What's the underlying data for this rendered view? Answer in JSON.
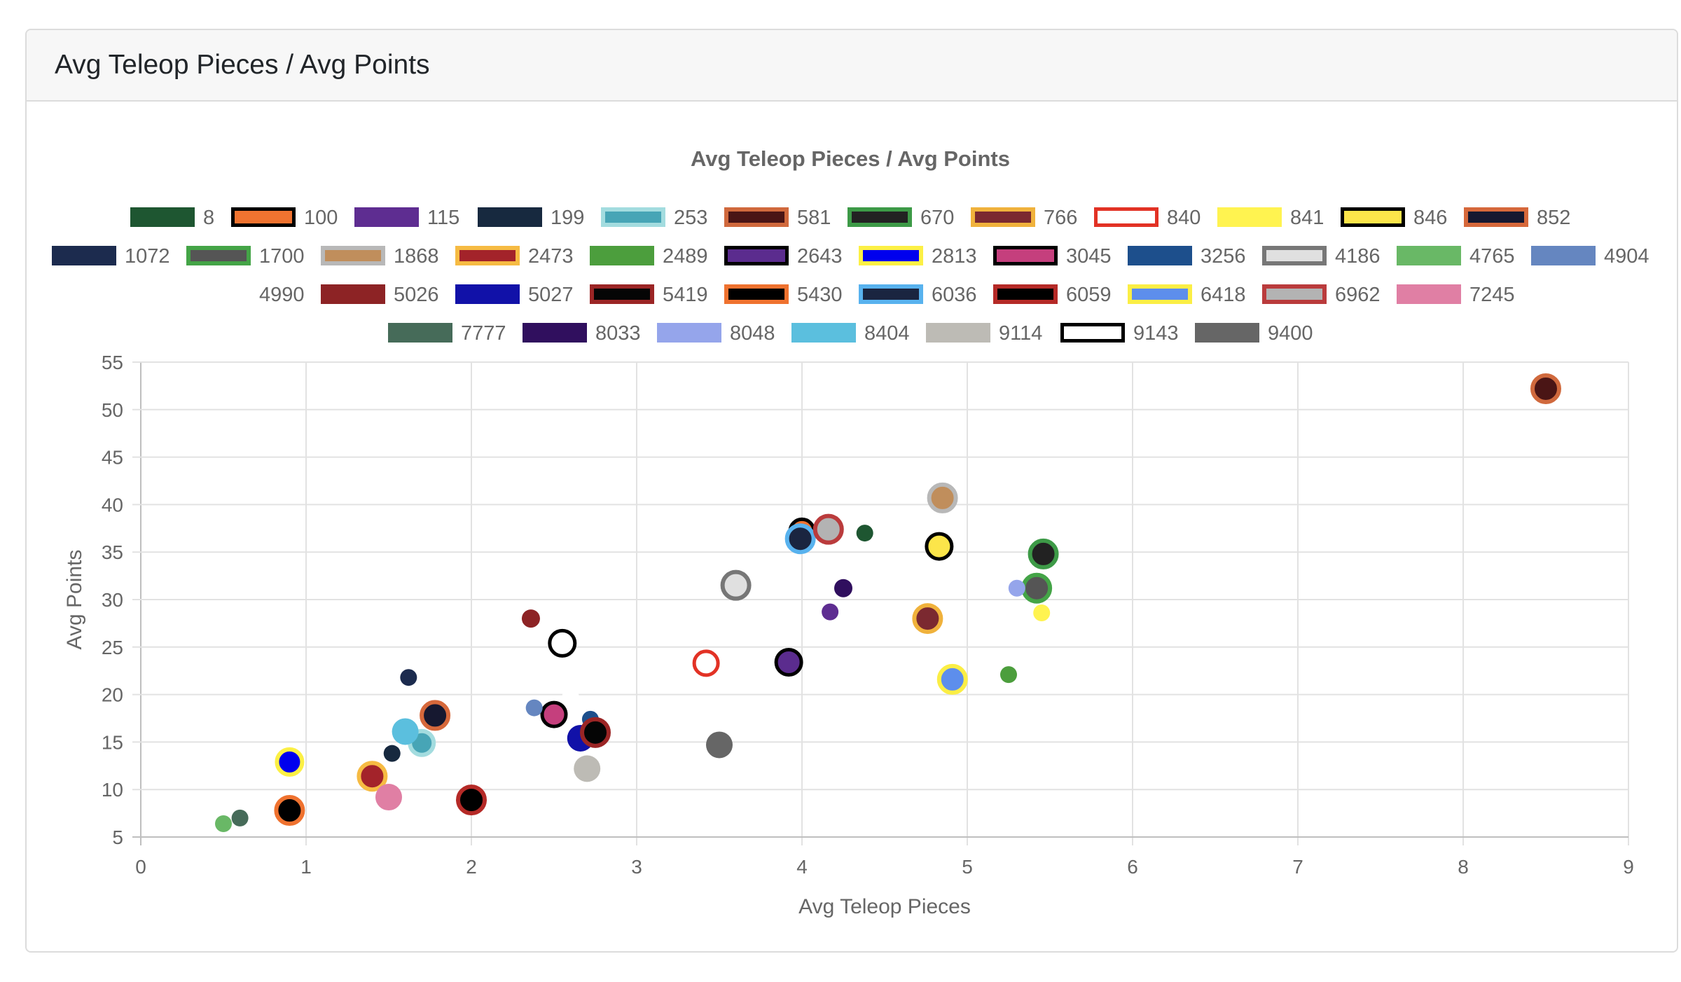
{
  "card": {
    "title": "Avg Teleop Pieces / Avg Points"
  },
  "chart_data": {
    "type": "scatter",
    "title": "Avg Teleop Pieces / Avg Points",
    "xlabel": "Avg Teleop Pieces",
    "ylabel": "Avg Points",
    "xlim": [
      0,
      9
    ],
    "ylim": [
      5,
      55
    ],
    "xticks": [
      "0",
      "1",
      "2",
      "3",
      "4",
      "5",
      "6",
      "7",
      "8",
      "9"
    ],
    "yticks": [
      "5",
      "10",
      "15",
      "20",
      "25",
      "30",
      "35",
      "40",
      "45",
      "50",
      "55"
    ],
    "grid": true,
    "legend_position": "top",
    "series": [
      {
        "name": "8",
        "fill": "#1e5631",
        "border": "#1e5631",
        "bw": 0,
        "r": 12,
        "x": 4.38,
        "y": 37
      },
      {
        "name": "100",
        "fill": "#f07330",
        "border": "#000000",
        "bw": 5,
        "r": 17,
        "x": 4,
        "y": 37.2
      },
      {
        "name": "115",
        "fill": "#5e2d91",
        "border": "#5e2d91",
        "bw": 0,
        "r": 12,
        "x": 4.17,
        "y": 28.7
      },
      {
        "name": "199",
        "fill": "#17293f",
        "border": "#17293f",
        "bw": 0,
        "r": 12,
        "x": 1.52,
        "y": 13.8
      },
      {
        "name": "253",
        "fill": "#47a5b6",
        "border": "#a3dcdf",
        "bw": 6,
        "r": 17,
        "x": 1.7,
        "y": 14.9
      },
      {
        "name": "581",
        "fill": "#4a1515",
        "border": "#d0693d",
        "bw": 6,
        "r": 19,
        "x": 8.5,
        "y": 52.2
      },
      {
        "name": "670",
        "fill": "#222222",
        "border": "#3d9a47",
        "bw": 6,
        "r": 19,
        "x": 5.46,
        "y": 34.8
      },
      {
        "name": "766",
        "fill": "#7b2930",
        "border": "#f0b23c",
        "bw": 6,
        "r": 19,
        "x": 4.76,
        "y": 28
      },
      {
        "name": "840",
        "fill": "#ffffff",
        "border": "#e23225",
        "bw": 5,
        "r": 17,
        "x": 3.42,
        "y": 23.3
      },
      {
        "name": "841",
        "fill": "#fff350",
        "border": "#fff350",
        "bw": 0,
        "r": 12,
        "x": 5.45,
        "y": 28.6
      },
      {
        "name": "846",
        "fill": "#fce54a",
        "border": "#000000",
        "bw": 5,
        "r": 18,
        "x": 4.83,
        "y": 35.6
      },
      {
        "name": "852",
        "fill": "#161830",
        "border": "#d6683b",
        "bw": 6,
        "r": 19,
        "x": 1.78,
        "y": 17.8
      },
      {
        "name": "1072",
        "fill": "#1c2b4e",
        "border": "#1c2b4e",
        "bw": 0,
        "r": 12,
        "x": 1.62,
        "y": 21.8
      },
      {
        "name": "1700",
        "fill": "#555555",
        "border": "#44a447",
        "bw": 6,
        "r": 19,
        "x": 5.42,
        "y": 31.2
      },
      {
        "name": "1868",
        "fill": "#c08e5c",
        "border": "#b8b8b8",
        "bw": 6,
        "r": 19,
        "x": 4.85,
        "y": 40.7
      },
      {
        "name": "2473",
        "fill": "#a3232a",
        "border": "#f6bb43",
        "bw": 6,
        "r": 19,
        "x": 1.4,
        "y": 11.4
      },
      {
        "name": "2489",
        "fill": "#4c9e3d",
        "border": "#4c9e3d",
        "bw": 0,
        "r": 12,
        "x": 5.25,
        "y": 22.1
      },
      {
        "name": "2643",
        "fill": "#5b2c8e",
        "border": "#000000",
        "bw": 5,
        "r": 18,
        "x": 3.92,
        "y": 23.4
      },
      {
        "name": "2813",
        "fill": "#0000ee",
        "border": "#fcf045",
        "bw": 6,
        "r": 18,
        "x": 0.9,
        "y": 12.9
      },
      {
        "name": "3045",
        "fill": "#c53f7d",
        "border": "#000000",
        "bw": 5,
        "r": 17,
        "x": 2.5,
        "y": 17.9
      },
      {
        "name": "3256",
        "fill": "#1d4f8c",
        "border": "#1d4f8c",
        "bw": 0,
        "r": 12,
        "x": 2.72,
        "y": 17.4
      },
      {
        "name": "4186",
        "fill": "#e0e0e0",
        "border": "#777777",
        "bw": 6,
        "r": 19,
        "x": 3.6,
        "y": 31.5
      },
      {
        "name": "4765",
        "fill": "#69b866",
        "border": "#69b866",
        "bw": 0,
        "r": 12,
        "x": 0.5,
        "y": 6.4
      },
      {
        "name": "4904",
        "fill": "#6586c0",
        "border": "#6586c0",
        "bw": 0,
        "r": 12,
        "x": 2.38,
        "y": 18.6
      },
      {
        "name": "4990",
        "fill": "#ffffff",
        "border": "#ffffff",
        "bw": 0,
        "r": 12,
        "x": 2.6,
        "y": 19.8
      },
      {
        "name": "5026",
        "fill": "#8d2325",
        "border": "#8d2325",
        "bw": 0,
        "r": 13,
        "x": 2.36,
        "y": 28
      },
      {
        "name": "5027",
        "fill": "#1111a8",
        "border": "#1111a8",
        "bw": 0,
        "r": 19,
        "x": 2.66,
        "y": 15.4
      },
      {
        "name": "5419",
        "fill": "#050505",
        "border": "#9b2525",
        "bw": 6,
        "r": 19,
        "x": 2.75,
        "y": 16
      },
      {
        "name": "5430",
        "fill": "#000000",
        "border": "#ef722f",
        "bw": 6,
        "r": 19,
        "x": 0.9,
        "y": 7.8
      },
      {
        "name": "6036",
        "fill": "#1a2540",
        "border": "#58b2ee",
        "bw": 6,
        "r": 19,
        "x": 3.99,
        "y": 36.4
      },
      {
        "name": "6059",
        "fill": "#000000",
        "border": "#b52a27",
        "bw": 6,
        "r": 19,
        "x": 2,
        "y": 8.9
      },
      {
        "name": "6418",
        "fill": "#5d8eec",
        "border": "#fbee45",
        "bw": 6,
        "r": 19,
        "x": 4.91,
        "y": 21.6
      },
      {
        "name": "6962",
        "fill": "#b3b3b3",
        "border": "#ba3b3c",
        "bw": 6,
        "r": 19,
        "x": 4.16,
        "y": 37.4
      },
      {
        "name": "7245",
        "fill": "#e07fa4",
        "border": "#e07fa4",
        "bw": 0,
        "r": 19,
        "x": 1.5,
        "y": 9.2
      },
      {
        "name": "7777",
        "fill": "#466b59",
        "border": "#466b59",
        "bw": 0,
        "r": 12,
        "x": 0.6,
        "y": 7
      },
      {
        "name": "8033",
        "fill": "#300f5e",
        "border": "#300f5e",
        "bw": 0,
        "r": 13,
        "x": 4.25,
        "y": 31.2
      },
      {
        "name": "8048",
        "fill": "#95a5eb",
        "border": "#95a5eb",
        "bw": 0,
        "r": 12,
        "x": 5.3,
        "y": 31.2
      },
      {
        "name": "8404",
        "fill": "#5bbfde",
        "border": "#5bbfde",
        "bw": 0,
        "r": 19,
        "x": 1.6,
        "y": 16.1
      },
      {
        "name": "9114",
        "fill": "#bdbbb5",
        "border": "#bdbbb5",
        "bw": 0,
        "r": 19,
        "x": 2.7,
        "y": 12.2
      },
      {
        "name": "9143",
        "fill": "#ffffff",
        "border": "#000000",
        "bw": 5,
        "r": 18,
        "x": 2.55,
        "y": 25.4
      },
      {
        "name": "9400",
        "fill": "#666666",
        "border": "#666666",
        "bw": 0,
        "r": 19,
        "x": 3.5,
        "y": 14.7
      }
    ]
  }
}
